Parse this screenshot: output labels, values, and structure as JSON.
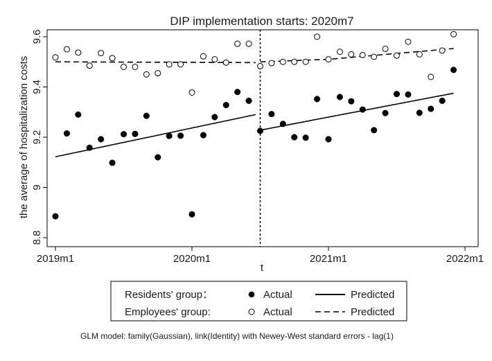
{
  "chart_data": {
    "type": "scatter",
    "title": "DIP implementation starts: 2020m7",
    "xlabel": "t",
    "ylabel": "the average of hospitalization costs",
    "x_ticks": [
      {
        "label": "2019m1",
        "value": 0
      },
      {
        "label": "2020m1",
        "value": 12
      },
      {
        "label": "2021m1",
        "value": 24
      },
      {
        "label": "2022m1",
        "value": 36
      }
    ],
    "y_ticks": [
      {
        "label": "8.8",
        "value": 8.8
      },
      {
        "label": "9",
        "value": 9.0
      },
      {
        "label": "9.2",
        "value": 9.2
      },
      {
        "label": "9.4",
        "value": 9.4
      },
      {
        "label": "9.6",
        "value": 9.6
      }
    ],
    "xlim": [
      0,
      36
    ],
    "ylim": [
      8.8,
      9.6
    ],
    "intervention_t": 18,
    "series": [
      {
        "name": "Residents' group",
        "marker": "filled",
        "values": [
          8.885,
          9.215,
          9.29,
          9.158,
          9.192,
          9.098,
          9.212,
          9.213,
          9.285,
          9.12,
          9.205,
          9.206,
          8.893,
          9.208,
          9.28,
          9.328,
          9.38,
          9.345,
          9.225,
          9.292,
          9.253,
          9.2,
          9.198,
          9.352,
          9.192,
          9.36,
          9.343,
          9.31,
          9.228,
          9.296,
          9.372,
          9.37,
          9.297,
          9.313,
          9.345,
          9.468
        ]
      },
      {
        "name": "Employees' group",
        "marker": "hollow",
        "values": [
          9.518,
          9.55,
          9.537,
          9.485,
          9.535,
          9.515,
          9.48,
          9.48,
          9.45,
          9.455,
          9.49,
          9.49,
          9.378,
          9.522,
          9.51,
          9.497,
          9.572,
          9.572,
          9.483,
          9.495,
          9.5,
          9.5,
          9.5,
          9.6,
          9.51,
          9.54,
          9.53,
          9.527,
          9.52,
          9.552,
          9.525,
          9.58,
          9.53,
          9.44,
          9.545,
          9.61
        ]
      }
    ],
    "fitted": [
      {
        "name": "Residents' group Predicted",
        "style": "solid",
        "segments": [
          {
            "x": [
              0,
              17.6
            ],
            "y": [
              9.122,
              9.29
            ]
          },
          {
            "x": [
              18,
              35
            ],
            "y": [
              9.228,
              9.375
            ]
          }
        ]
      },
      {
        "name": "Employees' group Predicted",
        "style": "dashed",
        "segments": [
          {
            "x": [
              0,
              17.6
            ],
            "y": [
              9.5,
              9.497
            ]
          },
          {
            "x": [
              18,
              24,
              35
            ],
            "y": [
              9.5,
              9.51,
              9.553
            ]
          }
        ]
      }
    ],
    "legend": {
      "row1_label": "Residents' group：",
      "row2_label": "Employees' group:",
      "actual": "Actual",
      "predicted": "Predicted"
    },
    "note": "GLM model: family(Gaussian), link(Identity) with Newey-West standard errors - lag(1)"
  }
}
